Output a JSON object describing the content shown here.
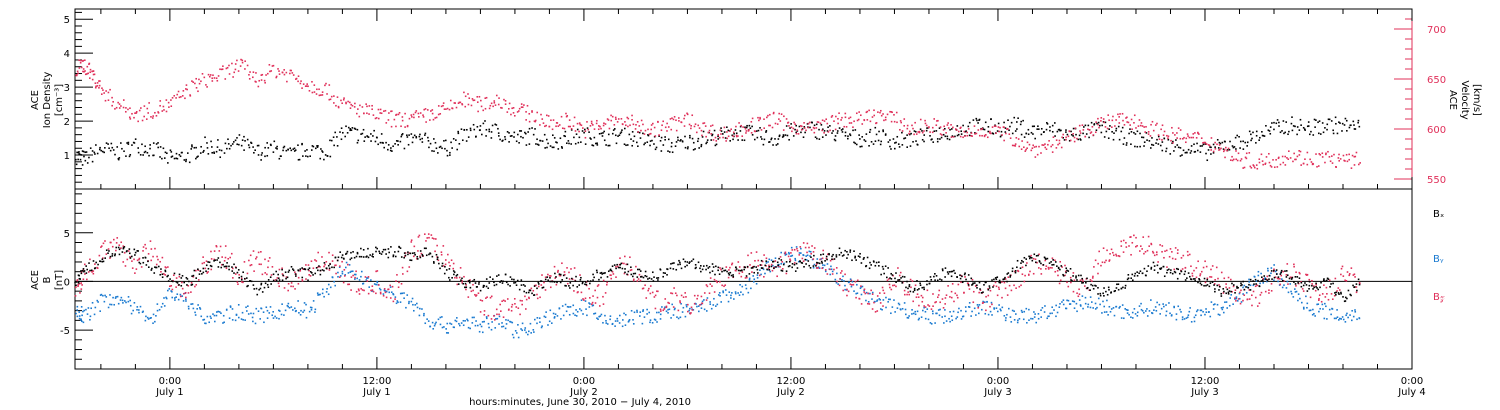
{
  "colors": {
    "axis": "#000000",
    "velocity": "#e0305a",
    "density": "#000000",
    "bx": "#000000",
    "by": "#1a7ad0",
    "bz": "#e0305a"
  },
  "top_panel": {
    "ylabel_left": [
      "ACE",
      "Ion Density",
      "[cm⁻³]"
    ],
    "ylabel_right": [
      "ACE",
      "Velocity",
      "[km/s]"
    ]
  },
  "bottom_panel": {
    "ylabel_left": [
      "ACE",
      "B",
      "[nT]"
    ],
    "legend": [
      "Bₓ",
      "Bᵧ",
      "B𝓏"
    ]
  },
  "xaxis": {
    "label": "hours:minutes, June 30, 2010 − July  4, 2010",
    "ticks": [
      {
        "time": "0:00",
        "date": "July 1",
        "hour": 24
      },
      {
        "time": "12:00",
        "date": "July 1",
        "hour": 36
      },
      {
        "time": "0:00",
        "date": "July 2",
        "hour": 48
      },
      {
        "time": "12:00",
        "date": "July 2",
        "hour": 60
      },
      {
        "time": "0:00",
        "date": "July 3",
        "hour": 72
      },
      {
        "time": "12:00",
        "date": "July 3",
        "hour": 84
      },
      {
        "time": "0:00",
        "date": "July 4",
        "hour": 96
      }
    ]
  },
  "chart_data": [
    {
      "type": "scatter",
      "panel": "top",
      "xunit": "hours since 2010-06-30 00:00",
      "xlim": [
        18.5,
        96
      ],
      "ylim_left": [
        0,
        5.3
      ],
      "ylim_right": [
        540,
        720
      ],
      "yticks_left": [
        1,
        2,
        3,
        4,
        5
      ],
      "yticks_right": [
        550,
        600,
        650,
        700
      ],
      "series": [
        {
          "name": "Velocity",
          "axis": "right",
          "x": [
            18.5,
            19,
            19.5,
            20,
            21,
            22,
            23,
            24,
            25,
            26,
            27,
            28,
            29,
            30,
            31,
            32,
            33,
            34,
            35,
            36,
            37,
            38,
            39,
            40,
            41,
            42,
            43,
            44,
            45,
            46,
            47,
            48,
            49,
            50,
            51,
            52,
            53,
            54,
            55,
            56,
            57,
            58,
            59,
            60,
            61,
            62,
            63,
            64,
            65,
            66,
            67,
            68,
            69,
            70,
            71,
            72,
            73,
            74,
            75,
            76,
            77,
            78,
            79,
            80,
            81,
            82,
            83,
            84,
            85,
            86,
            87,
            88,
            89,
            90,
            91,
            92,
            93
          ],
          "y": [
            660,
            665,
            655,
            640,
            625,
            615,
            620,
            625,
            640,
            650,
            655,
            665,
            650,
            660,
            655,
            645,
            640,
            625,
            620,
            615,
            610,
            610,
            615,
            620,
            630,
            625,
            630,
            620,
            615,
            605,
            610,
            600,
            605,
            610,
            605,
            600,
            605,
            610,
            600,
            595,
            600,
            605,
            610,
            605,
            600,
            605,
            610,
            610,
            615,
            610,
            600,
            605,
            600,
            595,
            600,
            598,
            590,
            580,
            585,
            590,
            600,
            605,
            610,
            608,
            600,
            595,
            592,
            590,
            580,
            570,
            568,
            570,
            575,
            570,
            572,
            568,
            570
          ]
        },
        {
          "name": "Ion Density",
          "axis": "left",
          "x": [
            18.5,
            19,
            20,
            21,
            22,
            23,
            24,
            25,
            26,
            27,
            28,
            29,
            30,
            31,
            32,
            33,
            34,
            35,
            36,
            37,
            38,
            39,
            40,
            41,
            42,
            43,
            44,
            45,
            46,
            47,
            48,
            49,
            50,
            51,
            52,
            53,
            54,
            55,
            56,
            57,
            58,
            59,
            60,
            61,
            62,
            63,
            64,
            65,
            66,
            67,
            68,
            69,
            70,
            71,
            72,
            73,
            74,
            75,
            76,
            77,
            78,
            79,
            80,
            81,
            82,
            83,
            84,
            85,
            86,
            87,
            88,
            89,
            90,
            91,
            92,
            93
          ],
          "y": [
            1.0,
            0.9,
            1.2,
            1.1,
            1.3,
            1.2,
            0.9,
            1.0,
            1.3,
            1.2,
            1.4,
            1.1,
            1.2,
            1.0,
            1.2,
            1.1,
            1.7,
            1.6,
            1.5,
            1.3,
            1.5,
            1.4,
            1.2,
            1.6,
            1.8,
            1.7,
            1.5,
            1.6,
            1.4,
            1.5,
            1.6,
            1.5,
            1.6,
            1.5,
            1.4,
            1.3,
            1.4,
            1.5,
            1.6,
            1.7,
            1.6,
            1.5,
            1.7,
            1.8,
            1.7,
            1.6,
            1.5,
            1.6,
            1.4,
            1.5,
            1.6,
            1.7,
            1.8,
            1.9,
            1.8,
            1.9,
            1.7,
            1.8,
            1.6,
            1.7,
            1.8,
            1.6,
            1.5,
            1.4,
            1.3,
            1.2,
            1.1,
            1.3,
            1.4,
            1.6,
            1.8,
            1.9,
            1.8,
            1.9,
            1.9,
            1.8
          ]
        }
      ]
    },
    {
      "type": "scatter",
      "panel": "bottom",
      "xunit": "hours since 2010-06-30 00:00",
      "xlim": [
        18.5,
        96
      ],
      "ylim": [
        -9,
        9.5
      ],
      "yticks": [
        -5,
        0,
        5
      ],
      "series": [
        {
          "name": "Bx",
          "x": [
            18.5,
            19,
            20,
            21,
            22,
            23,
            24,
            25,
            26,
            27,
            28,
            29,
            30,
            31,
            32,
            33,
            34,
            35,
            36,
            37,
            38,
            39,
            40,
            41,
            42,
            43,
            44,
            45,
            46,
            47,
            48,
            49,
            50,
            51,
            52,
            53,
            54,
            55,
            56,
            57,
            58,
            59,
            60,
            61,
            62,
            63,
            64,
            65,
            66,
            67,
            68,
            69,
            70,
            71,
            72,
            73,
            74,
            75,
            76,
            77,
            78,
            79,
            80,
            81,
            82,
            83,
            84,
            85,
            86,
            87,
            88,
            89,
            90,
            91,
            92,
            93
          ],
          "y": [
            0.0,
            1.0,
            2.5,
            3.2,
            2.8,
            1.5,
            0.5,
            0.0,
            1.5,
            2.0,
            1.0,
            -1.0,
            0.5,
            1.0,
            0.8,
            1.5,
            2.8,
            3.0,
            3.0,
            3.2,
            2.8,
            3.0,
            1.0,
            0.0,
            -0.5,
            0.5,
            0.0,
            -1.0,
            0.5,
            0.0,
            0.0,
            1.0,
            1.5,
            1.0,
            0.5,
            1.5,
            2.0,
            1.5,
            1.0,
            1.0,
            1.5,
            2.0,
            1.5,
            2.0,
            2.5,
            3.0,
            2.5,
            1.5,
            0.5,
            -0.5,
            0.0,
            1.0,
            0.5,
            -0.5,
            0.0,
            1.5,
            2.5,
            2.0,
            1.0,
            0.0,
            -1.0,
            -0.5,
            1.0,
            1.5,
            1.0,
            0.5,
            0.0,
            -1.0,
            -0.5,
            0.0,
            1.0,
            0.5,
            -0.5,
            0.0,
            -1.5,
            0.0
          ]
        },
        {
          "name": "By",
          "x": [
            18.5,
            19,
            20,
            21,
            22,
            23,
            24,
            25,
            26,
            27,
            28,
            29,
            30,
            31,
            32,
            33,
            34,
            35,
            36,
            37,
            38,
            39,
            40,
            41,
            42,
            43,
            44,
            45,
            46,
            47,
            48,
            49,
            50,
            51,
            52,
            53,
            54,
            55,
            56,
            57,
            58,
            59,
            60,
            61,
            62,
            63,
            64,
            65,
            66,
            67,
            68,
            69,
            70,
            71,
            72,
            73,
            74,
            75,
            76,
            77,
            78,
            79,
            80,
            81,
            82,
            83,
            84,
            85,
            86,
            87,
            88,
            89,
            90,
            91,
            92,
            93
          ],
          "y": [
            -3.0,
            -3.5,
            -2.0,
            -1.5,
            -3.0,
            -3.5,
            -1.0,
            -2.0,
            -3.8,
            -3.5,
            -3.0,
            -3.5,
            -3.2,
            -2.5,
            -3.0,
            -1.0,
            1.5,
            0.5,
            -0.5,
            -1.5,
            -2.0,
            -4.0,
            -4.5,
            -4.0,
            -4.5,
            -4.0,
            -5.0,
            -4.5,
            -3.5,
            -3.0,
            -2.5,
            -3.8,
            -4.0,
            -3.5,
            -3.5,
            -3.0,
            -3.0,
            -2.5,
            -1.5,
            -1.0,
            0.5,
            2.0,
            3.0,
            2.5,
            1.5,
            0.0,
            -1.0,
            -2.0,
            -2.5,
            -3.0,
            -3.5,
            -3.5,
            -3.0,
            -2.5,
            -3.0,
            -3.5,
            -3.5,
            -3.0,
            -2.5,
            -2.0,
            -2.5,
            -3.0,
            -3.0,
            -2.5,
            -3.0,
            -3.5,
            -3.0,
            -2.5,
            -1.5,
            0.5,
            1.0,
            -1.0,
            -2.5,
            -3.0,
            -3.5,
            -3.0
          ]
        },
        {
          "name": "Bz",
          "x": [
            18.5,
            19,
            20,
            21,
            22,
            23,
            24,
            25,
            26,
            27,
            28,
            29,
            30,
            31,
            32,
            33,
            34,
            35,
            36,
            37,
            38,
            39,
            40,
            41,
            42,
            43,
            44,
            45,
            46,
            47,
            48,
            49,
            50,
            51,
            52,
            53,
            54,
            55,
            56,
            57,
            58,
            59,
            60,
            61,
            62,
            63,
            64,
            65,
            66,
            67,
            68,
            69,
            70,
            71,
            72,
            73,
            74,
            75,
            76,
            77,
            78,
            79,
            80,
            81,
            82,
            83,
            84,
            85,
            86,
            87,
            88,
            89,
            90,
            91,
            92,
            93
          ],
          "y": [
            -1.0,
            1.0,
            3.0,
            3.5,
            2.0,
            3.5,
            0.0,
            -1.0,
            2.0,
            3.0,
            0.5,
            2.5,
            1.0,
            0.0,
            1.5,
            2.5,
            1.0,
            -0.5,
            0.0,
            -1.0,
            3.5,
            4.0,
            2.5,
            0.0,
            -2.0,
            -3.0,
            -2.5,
            -1.0,
            0.5,
            1.0,
            -1.0,
            -1.5,
            2.0,
            1.0,
            -2.0,
            -1.5,
            -2.5,
            -1.0,
            0.5,
            1.5,
            2.0,
            1.0,
            2.5,
            3.0,
            2.0,
            0.0,
            -1.0,
            -2.0,
            0.5,
            -1.0,
            -2.0,
            -1.5,
            0.0,
            -2.0,
            -1.0,
            0.0,
            2.0,
            1.5,
            0.5,
            -1.0,
            3.0,
            3.5,
            4.0,
            3.5,
            2.5,
            2.0,
            1.0,
            0.0,
            -1.0,
            -1.5,
            0.5,
            1.0,
            -0.5,
            -1.5,
            1.0,
            -0.5
          ]
        }
      ]
    }
  ]
}
